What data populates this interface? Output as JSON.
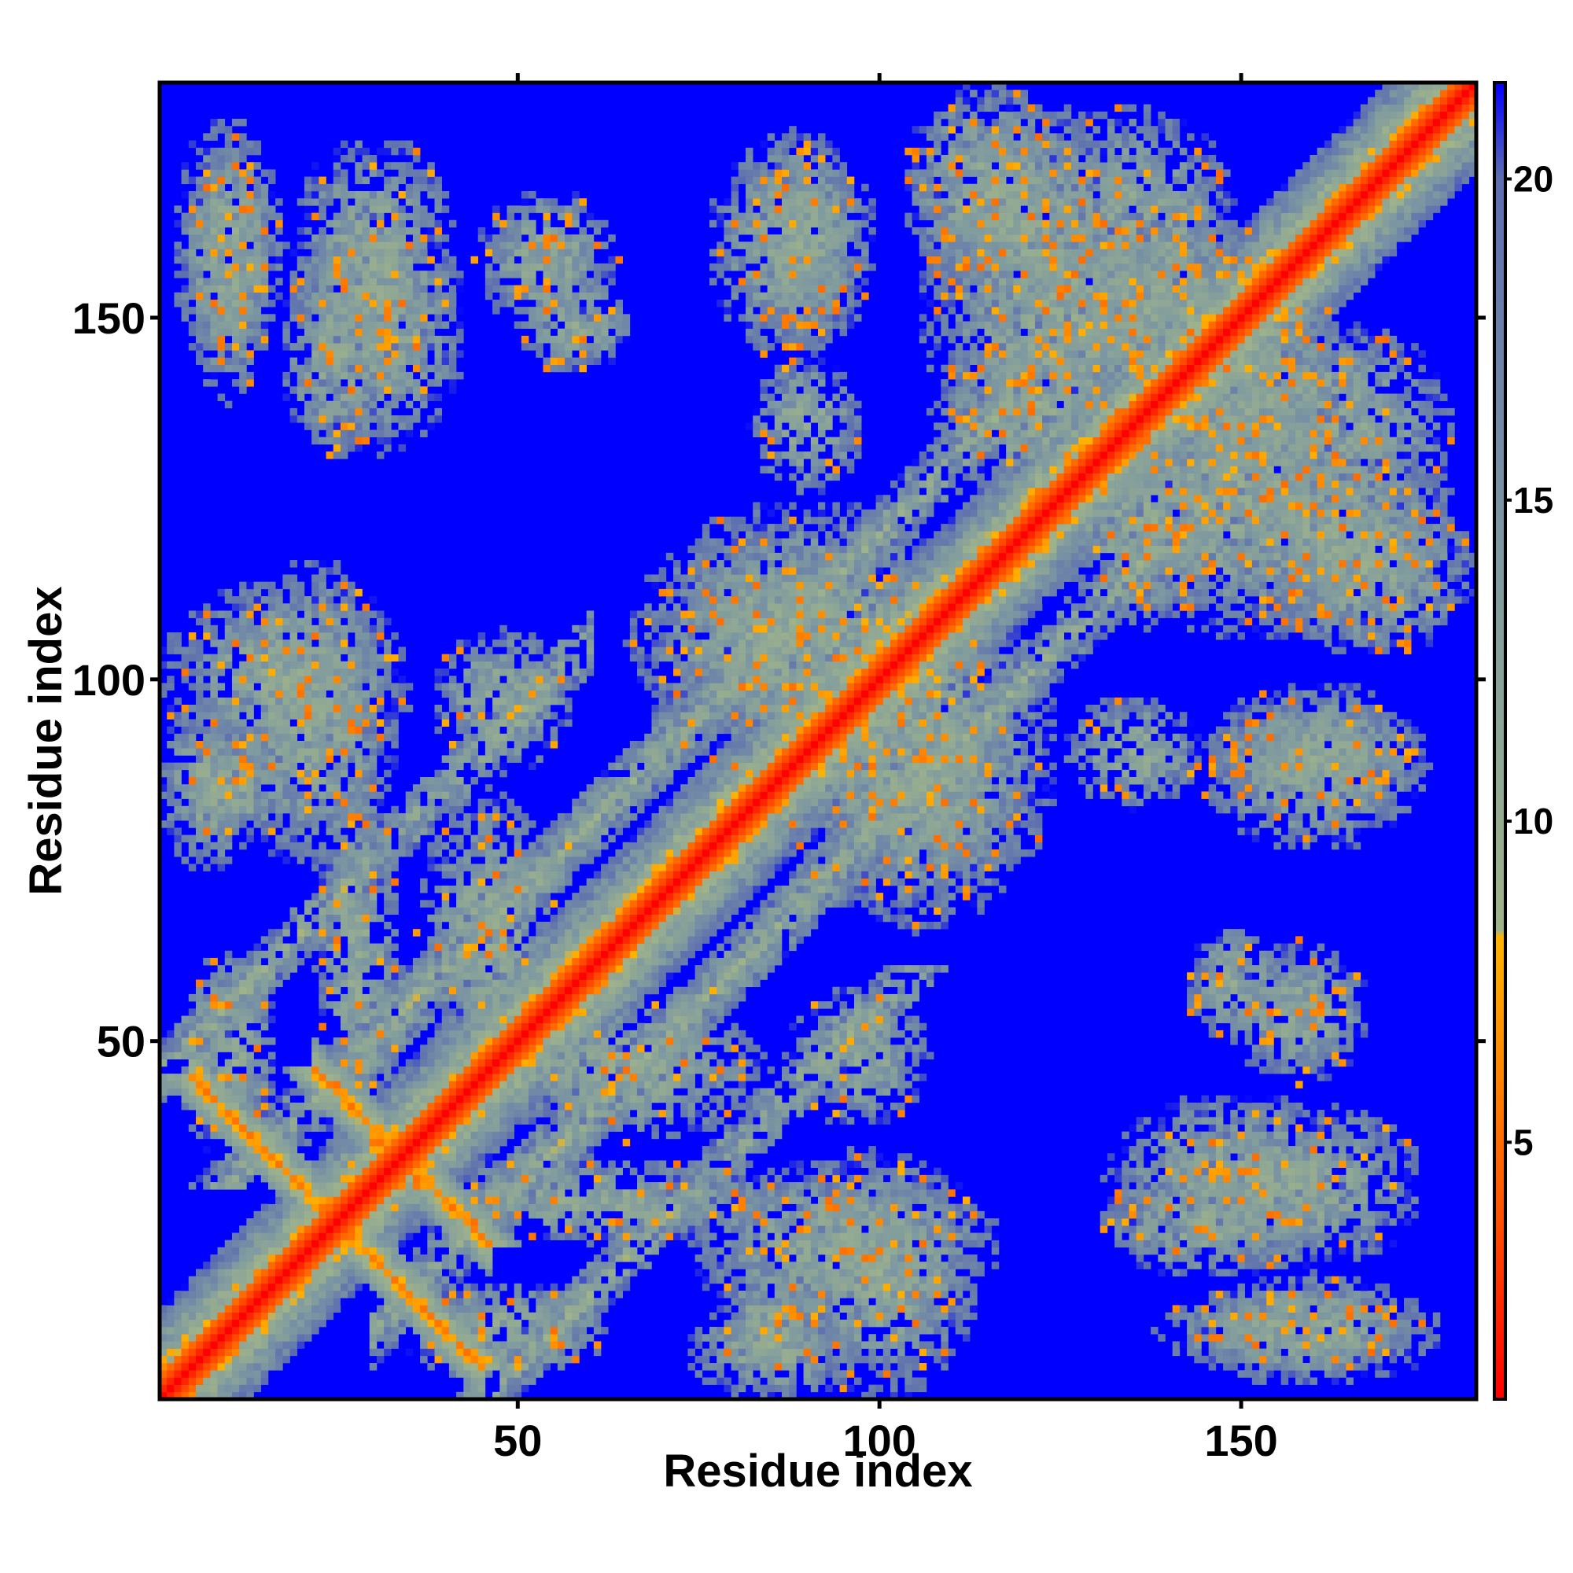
{
  "chart_data": {
    "type": "heatmap",
    "title": "",
    "xlabel": "Residue index",
    "ylabel": "Residue index",
    "xlim": [
      1,
      182
    ],
    "ylim": [
      1,
      182
    ],
    "xticks": [
      50,
      100,
      150
    ],
    "yticks": [
      50,
      100,
      150
    ],
    "xtick_labels": [
      "50",
      "100",
      "150"
    ],
    "ytick_labels": [
      "50",
      "100",
      "150"
    ],
    "colorbar": {
      "min": 1,
      "max": 21.5,
      "ticks": [
        5,
        10,
        15,
        20
      ],
      "tick_labels": [
        "5",
        "10",
        "15",
        "20"
      ],
      "colors": [
        {
          "value": 1,
          "color": "#ff0000"
        },
        {
          "value": 4,
          "color": "#ff5500"
        },
        {
          "value": 7,
          "color": "#ff9900"
        },
        {
          "value": 8.2,
          "color": "#ffb300"
        },
        {
          "value": 8.3,
          "color": "#9fb38a"
        },
        {
          "value": 14,
          "color": "#7f9aa0"
        },
        {
          "value": 20,
          "color": "#5d6fb0"
        },
        {
          "value": 21.5,
          "color": "#0000ff"
        }
      ]
    },
    "colors": {
      "background": "#0000ff",
      "near": "#ff0000",
      "contact": "#ff9900",
      "medium": "#9fb38a"
    },
    "series": [
      {
        "kind": "diagonal",
        "i0": 1,
        "i1": 182,
        "width": 6
      },
      {
        "kind": "antidiagonal",
        "sum": 50,
        "from": 5,
        "to": 45,
        "width": 4
      },
      {
        "kind": "antidiagonal",
        "sum": 68,
        "from": 22,
        "to": 46,
        "width": 4
      },
      {
        "kind": "parallel",
        "offset": 20,
        "from": 30,
        "to": 120,
        "width": 5
      },
      {
        "kind": "parallel",
        "offset": -20,
        "from": 30,
        "to": 120,
        "width": 5
      },
      {
        "kind": "parallel",
        "offset": 45,
        "from": 5,
        "to": 60,
        "width": 4
      },
      {
        "kind": "parallel",
        "offset": -45,
        "from": 5,
        "to": 60,
        "width": 4
      },
      {
        "kind": "blob",
        "cx": 10,
        "cy": 156,
        "rx": 6,
        "ry": 18
      },
      {
        "kind": "blob",
        "cx": 31,
        "cy": 149,
        "rx": 12,
        "ry": 18
      },
      {
        "kind": "blob",
        "cx": 58,
        "cy": 149,
        "rx": 8,
        "ry": 7
      },
      {
        "kind": "blob",
        "cx": 88,
        "cy": 160,
        "rx": 12,
        "ry": 16
      },
      {
        "kind": "blob",
        "cx": 120,
        "cy": 163,
        "rx": 15,
        "ry": 18
      },
      {
        "kind": "blob",
        "cx": 140,
        "cy": 150,
        "rx": 20,
        "ry": 15
      },
      {
        "kind": "blob",
        "cx": 162,
        "cy": 135,
        "rx": 18,
        "ry": 15
      },
      {
        "kind": "blob",
        "cx": 168,
        "cy": 115,
        "rx": 15,
        "ry": 12
      },
      {
        "kind": "blob",
        "cx": 150,
        "cy": 125,
        "rx": 20,
        "ry": 20
      },
      {
        "kind": "blob",
        "cx": 121,
        "cy": 137,
        "rx": 14,
        "ry": 12
      },
      {
        "kind": "blob",
        "cx": 90,
        "cy": 105,
        "rx": 25,
        "ry": 20
      },
      {
        "kind": "blob",
        "cx": 107,
        "cy": 84,
        "rx": 14,
        "ry": 14
      },
      {
        "kind": "blob",
        "cx": 18,
        "cy": 100,
        "rx": 18,
        "ry": 14
      },
      {
        "kind": "blob",
        "cx": 11,
        "cy": 85,
        "rx": 8,
        "ry": 8
      },
      {
        "kind": "blob",
        "cx": 95,
        "cy": 22,
        "rx": 22,
        "ry": 12
      },
      {
        "kind": "blob",
        "cx": 85,
        "cy": 7,
        "rx": 12,
        "ry": 7
      },
      {
        "kind": "blob",
        "cx": 160,
        "cy": 10,
        "rx": 18,
        "ry": 8
      },
      {
        "kind": "blob",
        "cx": 158,
        "cy": 30,
        "rx": 18,
        "ry": 12
      },
      {
        "kind": "blob",
        "cx": 158,
        "cy": 54,
        "rx": 10,
        "ry": 10
      },
      {
        "kind": "blob",
        "cx": 160,
        "cy": 90,
        "rx": 15,
        "ry": 8
      },
      {
        "kind": "blob",
        "cx": 135,
        "cy": 90,
        "rx": 10,
        "ry": 8
      },
      {
        "kind": "blob",
        "cx": 65,
        "cy": 46,
        "rx": 20,
        "ry": 10
      },
      {
        "kind": "blob",
        "cx": 60,
        "cy": 28,
        "rx": 30,
        "ry": 6
      },
      {
        "kind": "blob",
        "cx": 48,
        "cy": 10,
        "rx": 15,
        "ry": 7
      },
      {
        "kind": "blob",
        "cx": 97,
        "cy": 48,
        "rx": 10,
        "ry": 10
      },
      {
        "kind": "blob",
        "cx": 145,
        "cy": 25,
        "rx": 15,
        "ry": 8
      }
    ]
  }
}
